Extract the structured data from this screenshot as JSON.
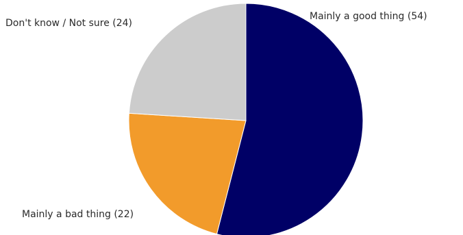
{
  "chart_data": {
    "type": "pie",
    "title": "",
    "start_angle_deg": 0,
    "direction": "clockwise",
    "slices": [
      {
        "label": "Mainly a good thing (54)",
        "value": 54,
        "color": "#000066"
      },
      {
        "label": "Mainly a bad thing (22)",
        "value": 22,
        "color": "#F29B2B"
      },
      {
        "label": "Don't know / Not sure (24)",
        "value": 24,
        "color": "#CCCCCC"
      }
    ]
  }
}
